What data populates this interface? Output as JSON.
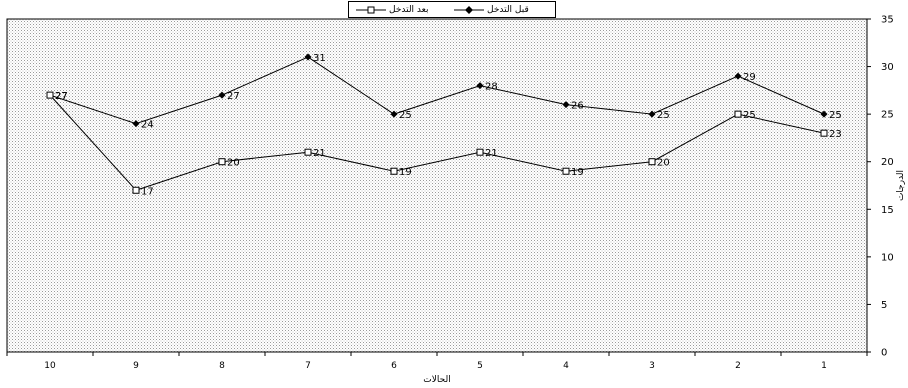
{
  "chart_data": {
    "type": "line",
    "title": "",
    "xlabel": "الحالات",
    "ylabel": "الدرجات",
    "categories": [
      "10",
      "9",
      "8",
      "7",
      "6",
      "5",
      "4",
      "3",
      "2",
      "1"
    ],
    "series": [
      {
        "name": "قبل التدخل",
        "marker": "diamond",
        "values": [
          27,
          24,
          27,
          31,
          25,
          28,
          26,
          25,
          29,
          25
        ],
        "color": "#000000"
      },
      {
        "name": "بعد التدخل",
        "marker": "square",
        "values": [
          27,
          17,
          20,
          21,
          19,
          21,
          19,
          20,
          25,
          23
        ],
        "color": "#000000"
      }
    ],
    "ylim": [
      0,
      35
    ],
    "yticks": [
      0,
      5,
      10,
      15,
      20,
      25,
      30,
      35
    ],
    "y_axis_side": "right",
    "legend_position": "top-center",
    "grid": false
  }
}
